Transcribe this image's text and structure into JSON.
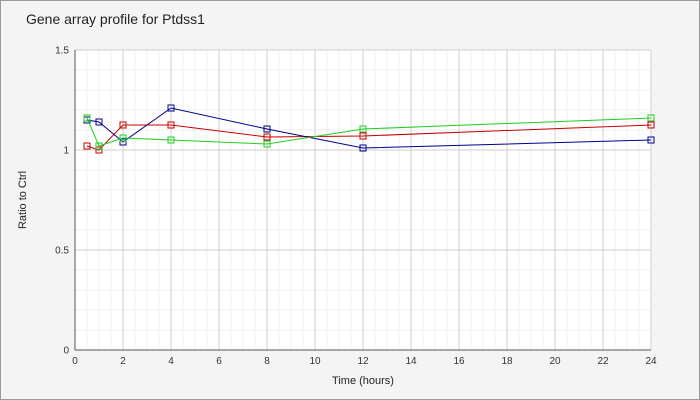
{
  "chart_data": {
    "type": "line",
    "title": "Gene array profile for Ptdss1",
    "xlabel": "Time (hours)",
    "ylabel": "Ratio to Ctrl",
    "xlim": [
      0,
      24
    ],
    "ylim": [
      0,
      1.5
    ],
    "x_ticks": [
      0,
      2,
      4,
      6,
      8,
      10,
      12,
      14,
      16,
      18,
      20,
      22,
      24
    ],
    "y_ticks": [
      0,
      0.5,
      1,
      1.5
    ],
    "y_tick_labels": [
      "0",
      "0.5",
      "1",
      "1.5"
    ],
    "grid": true,
    "series": [
      {
        "color": "#cc0000",
        "x": [
          0.5,
          1,
          2,
          4,
          8,
          12,
          24
        ],
        "values": [
          1.02,
          1.0,
          1.125,
          1.125,
          1.065,
          1.07,
          1.125
        ]
      },
      {
        "color": "#00008b",
        "x": [
          0.5,
          1,
          2,
          4,
          8,
          12,
          24
        ],
        "values": [
          1.15,
          1.14,
          1.04,
          1.21,
          1.105,
          1.01,
          1.05
        ]
      },
      {
        "color": "#22cc22",
        "x": [
          0.5,
          1,
          2,
          4,
          8,
          12,
          24
        ],
        "values": [
          1.16,
          1.02,
          1.06,
          1.05,
          1.03,
          1.105,
          1.16
        ]
      }
    ]
  }
}
